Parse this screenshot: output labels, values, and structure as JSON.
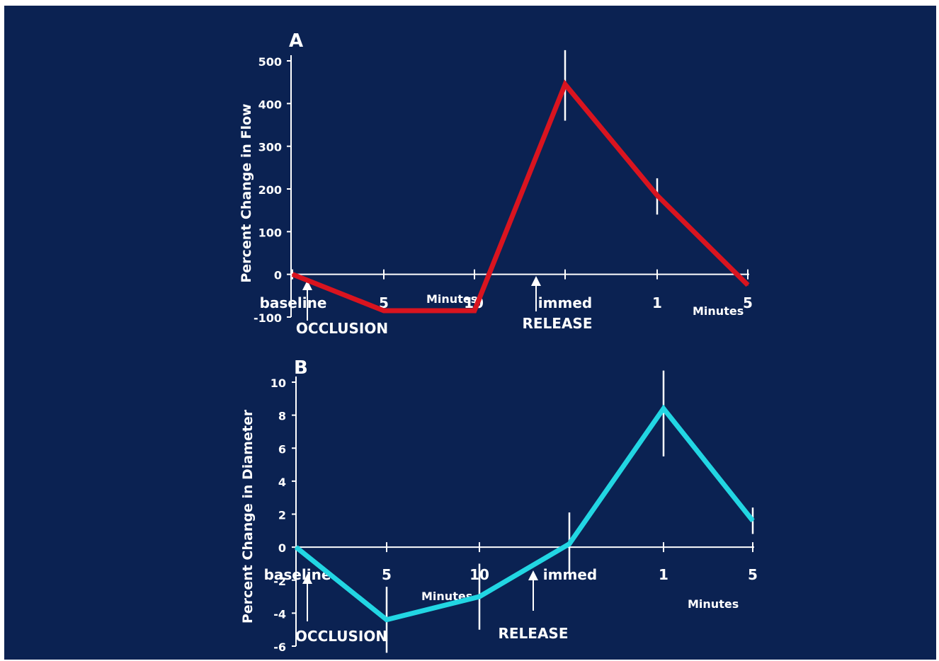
{
  "colors": {
    "background": "#0b2252",
    "axis": "#ffffff",
    "flow_series": "#d9141f",
    "diameter_series": "#22d6e3"
  },
  "chart_data": [
    {
      "type": "line",
      "panel_label": "A",
      "ylabel": "Percent Change in Flow",
      "ylim": [
        -100,
        500
      ],
      "yticks": [
        "500",
        "400",
        "300",
        "200",
        "100",
        "0",
        "-100"
      ],
      "categories": [
        "baseline",
        "5",
        "10",
        "immed",
        "1",
        "5"
      ],
      "unit_labels": [
        "Minutes",
        "Minutes"
      ],
      "event_labels": [
        "OCCLUSION",
        "RELEASE"
      ],
      "values": [
        0,
        -85,
        -85,
        445,
        185,
        -25
      ],
      "error_bars": [
        null,
        null,
        null,
        [
          360,
          525
        ],
        [
          140,
          225
        ],
        null
      ]
    },
    {
      "type": "line",
      "panel_label": "B",
      "ylabel": "Percent Change in Diameter",
      "ylim": [
        -6,
        10
      ],
      "yticks": [
        "10",
        "8",
        "6",
        "4",
        "2",
        "0",
        "-2",
        "-4",
        "-6"
      ],
      "categories": [
        "baseline",
        "5",
        "10",
        "immed",
        "1",
        "5"
      ],
      "unit_labels": [
        "Minutes",
        "Minutes"
      ],
      "event_labels": [
        "OCCLUSION",
        "RELEASE"
      ],
      "values": [
        0,
        -4.4,
        -3,
        0.2,
        8.4,
        1.6
      ],
      "error_bars": [
        null,
        [
          -6.4,
          -2.4
        ],
        [
          -5,
          -1
        ],
        [
          -1.6,
          2.1
        ],
        [
          5.5,
          10.7
        ],
        [
          0.8,
          2.4
        ]
      ]
    }
  ]
}
